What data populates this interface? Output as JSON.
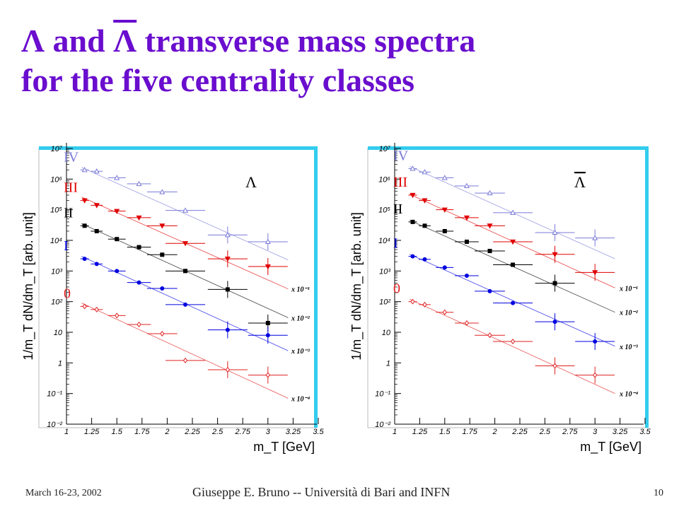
{
  "slide": {
    "title_parts": {
      "lambda": "Λ",
      "and": " and ",
      "antilambda": "Λ",
      "rest_line1": " transverse mass spectra",
      "line2": "for the five centrality classes"
    },
    "footer": {
      "date": "March 16-23, 2002",
      "author": "Giuseppe E. Bruno -- Università di Bari and INFN",
      "page": "10"
    }
  },
  "colors": {
    "title": "#6a0dce",
    "class_IV": "#7a7ad8",
    "class_III": "#e00000",
    "class_II": "#000000",
    "class_I": "#0000e0",
    "class_0": "#e02020",
    "frame_shadow": "#33ccee"
  },
  "chart_data": [
    {
      "type": "scatter",
      "particle_label": "Λ",
      "xlabel": "m_T   [GeV]",
      "ylabel": "1/m_T dN/dm_T  [arb. unit]",
      "xlim": [
        1,
        3.5
      ],
      "ylim": [
        0.01,
        10000000
      ],
      "yscale": "log",
      "x_ticks": [
        "1",
        "1.25",
        "1.5",
        "1.75",
        "2",
        "2.25",
        "2.5",
        "2.75",
        "3",
        "3.25",
        "3.5"
      ],
      "y_ticks": [
        "10⁻²",
        "10⁻¹",
        "1",
        "10",
        "10²",
        "10³",
        "10⁴",
        "10⁵",
        "10⁶",
        "10⁷"
      ],
      "series": [
        {
          "name": "IV",
          "marker": "open-triangle",
          "scale": "",
          "x": [
            1.18,
            1.3,
            1.5,
            1.72,
            1.95,
            2.18,
            2.6,
            3.0
          ],
          "y": [
            2000000,
            1800000,
            1100000,
            700000,
            380000,
            95000,
            15000,
            9000
          ],
          "fit": [
            [
              1.15,
              2400000
            ],
            [
              3.2,
              2300
            ]
          ]
        },
        {
          "name": "III",
          "marker": "filled-triangle-down",
          "scale": "x 10⁻¹",
          "x": [
            1.18,
            1.3,
            1.5,
            1.72,
            1.95,
            2.18,
            2.6,
            3.0
          ],
          "y": [
            200000,
            140000,
            90000,
            55000,
            30000,
            8000,
            2500,
            1400
          ],
          "fit": [
            [
              1.15,
              260000
            ],
            [
              3.2,
              260
            ]
          ]
        },
        {
          "name": "II",
          "marker": "filled-square",
          "scale": "x 10⁻²",
          "x": [
            1.18,
            1.3,
            1.5,
            1.72,
            1.95,
            2.18,
            2.6,
            3.0
          ],
          "y": [
            30000,
            20000,
            11000,
            6000,
            3400,
            1000,
            250,
            20
          ],
          "fit": [
            [
              1.15,
              35000
            ],
            [
              3.2,
              30
            ]
          ]
        },
        {
          "name": "I",
          "marker": "filled-circle",
          "scale": "x 10⁻³",
          "x": [
            1.18,
            1.3,
            1.5,
            1.72,
            1.95,
            2.18,
            2.6,
            3.0
          ],
          "y": [
            2500,
            1700,
            1000,
            420,
            270,
            80,
            12,
            8
          ],
          "fit": [
            [
              1.15,
              3000
            ],
            [
              3.2,
              2.5
            ]
          ]
        },
        {
          "name": "0",
          "marker": "open-diamond",
          "scale": "x 10⁻⁴",
          "x": [
            1.18,
            1.3,
            1.5,
            1.72,
            1.95,
            2.18,
            2.6,
            3.0
          ],
          "y": [
            70,
            55,
            35,
            18,
            9,
            1.2,
            0.6,
            0.4
          ],
          "fit": [
            [
              1.15,
              90
            ],
            [
              3.2,
              0.07
            ]
          ]
        }
      ]
    },
    {
      "type": "scatter",
      "particle_label": "Λ",
      "xlabel": "m_T   [GeV]",
      "ylabel": "1/m_T dN/dm_T  [arb. unit]",
      "xlim": [
        1,
        3.5
      ],
      "ylim": [
        0.01,
        10000000
      ],
      "yscale": "log",
      "x_ticks": [
        "1",
        "1.25",
        "1.5",
        "1.75",
        "2",
        "2.25",
        "2.5",
        "2.75",
        "3",
        "3.25",
        "3.5"
      ],
      "y_ticks": [
        "10⁻²",
        "10⁻¹",
        "1",
        "10",
        "10²",
        "10³",
        "10⁴",
        "10⁵",
        "10⁶",
        "10⁷"
      ],
      "series": [
        {
          "name": "IV",
          "marker": "open-triangle",
          "scale": "",
          "x": [
            1.18,
            1.3,
            1.5,
            1.72,
            1.95,
            2.18,
            2.6,
            3.0
          ],
          "y": [
            2200000,
            1700000,
            1100000,
            600000,
            350000,
            80000,
            18000,
            12000
          ],
          "fit": [
            [
              1.15,
              2600000
            ],
            [
              3.2,
              2500
            ]
          ]
        },
        {
          "name": "III",
          "marker": "filled-triangle-down",
          "scale": "x 10⁻¹",
          "x": [
            1.18,
            1.3,
            1.5,
            1.72,
            1.95,
            2.18,
            2.6,
            3.0
          ],
          "y": [
            300000,
            200000,
            100000,
            55000,
            30000,
            9000,
            3500,
            900
          ],
          "fit": [
            [
              1.15,
              320000
            ],
            [
              3.2,
              280
            ]
          ]
        },
        {
          "name": "II",
          "marker": "filled-square",
          "scale": "x 10⁻²",
          "x": [
            1.18,
            1.3,
            1.5,
            1.72,
            1.95,
            2.18,
            2.6,
            3.0
          ],
          "y": [
            40000,
            30000,
            20000,
            9000,
            4500,
            1600,
            400,
            0
          ],
          "fit": [
            [
              1.15,
              45000
            ],
            [
              3.2,
              45
            ]
          ]
        },
        {
          "name": "I",
          "marker": "filled-circle",
          "scale": "x 10⁻³",
          "x": [
            1.18,
            1.3,
            1.5,
            1.72,
            1.95,
            2.18,
            2.6,
            3.0
          ],
          "y": [
            3000,
            2400,
            1300,
            700,
            220,
            90,
            22,
            5
          ],
          "fit": [
            [
              1.15,
              3500
            ],
            [
              3.2,
              3.5
            ]
          ]
        },
        {
          "name": "0",
          "marker": "open-diamond",
          "scale": "x 10⁻⁴",
          "x": [
            1.18,
            1.3,
            1.5,
            1.72,
            1.95,
            2.18,
            2.6,
            3.0
          ],
          "y": [
            100,
            80,
            45,
            20,
            8,
            5,
            0.8,
            0.4
          ],
          "fit": [
            [
              1.15,
              120
            ],
            [
              3.2,
              0.1
            ]
          ]
        }
      ]
    }
  ]
}
